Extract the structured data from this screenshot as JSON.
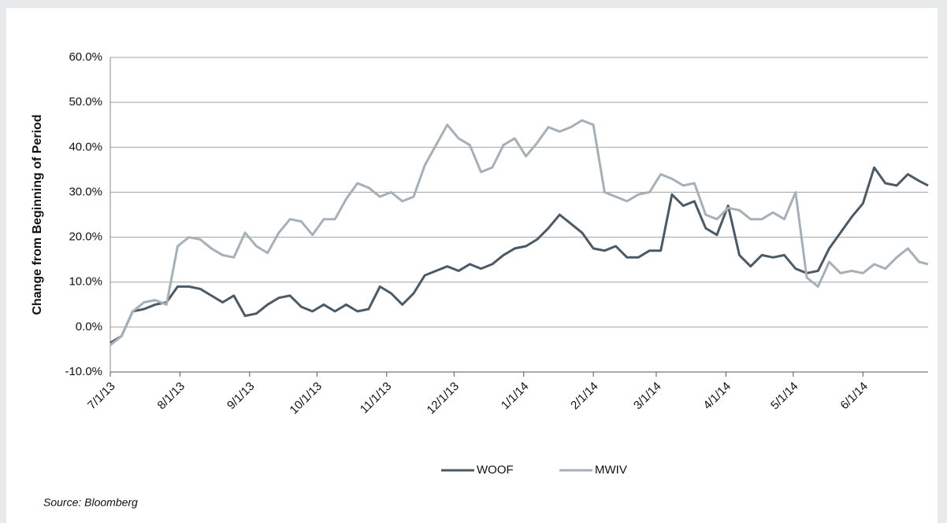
{
  "chart_data": {
    "type": "line",
    "y_label": "Change from Beginning of Period",
    "source": "Source: Bloomberg",
    "x": [
      "7/1/13",
      "7/6/13",
      "7/11/13",
      "7/16/13",
      "7/21/13",
      "7/26/13",
      "7/31/13",
      "8/5/13",
      "8/10/13",
      "8/15/13",
      "8/20/13",
      "8/25/13",
      "8/30/13",
      "9/4/13",
      "9/9/13",
      "9/14/13",
      "9/19/13",
      "9/24/13",
      "9/29/13",
      "10/4/13",
      "10/9/13",
      "10/14/13",
      "10/19/13",
      "10/24/13",
      "10/29/13",
      "11/3/13",
      "11/8/13",
      "11/13/13",
      "11/18/13",
      "11/23/13",
      "11/28/13",
      "12/3/13",
      "12/8/13",
      "12/13/13",
      "12/18/13",
      "12/23/13",
      "12/28/13",
      "1/2/14",
      "1/7/14",
      "1/12/14",
      "1/17/14",
      "1/22/14",
      "1/27/14",
      "2/1/14",
      "2/6/14",
      "2/11/14",
      "2/16/14",
      "2/21/14",
      "2/26/14",
      "3/3/14",
      "3/8/14",
      "3/13/14",
      "3/18/14",
      "3/23/14",
      "3/28/14",
      "4/2/14",
      "4/7/14",
      "4/12/14",
      "4/17/14",
      "4/22/14",
      "4/27/14",
      "5/2/14",
      "5/7/14",
      "5/12/14",
      "5/17/14",
      "5/22/14",
      "5/27/14",
      "6/1/14",
      "6/6/14",
      "6/11/14",
      "6/16/14",
      "6/21/14",
      "6/26/14",
      "6/30/14"
    ],
    "series": [
      {
        "name": "WOOF",
        "color": "#4a5a66",
        "values": [
          -3.5,
          -2,
          3.5,
          4,
          5,
          5.5,
          9,
          9,
          8.5,
          7,
          5.5,
          7,
          2.5,
          3,
          5,
          6.5,
          7,
          4.5,
          3.5,
          5,
          3.5,
          5,
          3.5,
          4,
          9,
          7.5,
          5,
          7.5,
          11.5,
          12.5,
          13.5,
          12.5,
          14,
          13,
          14,
          16,
          17.5,
          18,
          19.5,
          22,
          25,
          23,
          21,
          17.5,
          17,
          18,
          15.5,
          15.5,
          17,
          17,
          29.5,
          27,
          28,
          22,
          20.5,
          27,
          16,
          13.5,
          16,
          15.5,
          16,
          13,
          12,
          12.5,
          17.5,
          21,
          24.5,
          27.5,
          35.5,
          32,
          31.5,
          34,
          32.5,
          31.5
        ]
      },
      {
        "name": "MWIV",
        "color": "#a6b0b8",
        "values": [
          -4,
          -2,
          3.5,
          5.5,
          6,
          5,
          18,
          20,
          19.5,
          17.5,
          16,
          15.5,
          21,
          18,
          16.5,
          21,
          24,
          23.5,
          20.5,
          24,
          24,
          28.5,
          32,
          31,
          29,
          30,
          28,
          29,
          36,
          40.5,
          45,
          42,
          40.5,
          34.5,
          35.5,
          40.5,
          42,
          38,
          41,
          44.5,
          43.5,
          44.5,
          46,
          45,
          30,
          29,
          28,
          29.5,
          30,
          34,
          33,
          31.5,
          32,
          25,
          24,
          26.5,
          26,
          24,
          24,
          25.5,
          24,
          30,
          11,
          9,
          14.5,
          12,
          12.5,
          12,
          14,
          13,
          15.5,
          17.5,
          14.5,
          14
        ]
      }
    ],
    "xlim": [
      "7/1/13",
      "6/30/14"
    ],
    "xticks": [
      "7/1/13",
      "8/1/13",
      "9/1/13",
      "10/1/13",
      "11/1/13",
      "12/1/13",
      "1/1/14",
      "2/1/14",
      "3/1/14",
      "4/1/14",
      "5/1/14",
      "6/1/14"
    ],
    "ylim": [
      -10,
      60
    ],
    "yticks": [
      {
        "value": -10,
        "label": "-10.0%"
      },
      {
        "value": 0,
        "label": "0.0%"
      },
      {
        "value": 10,
        "label": "10.0%"
      },
      {
        "value": 20,
        "label": "20.0%"
      },
      {
        "value": 30,
        "label": "30.0%"
      },
      {
        "value": 40,
        "label": "40.0%"
      },
      {
        "value": 50,
        "label": "50.0%"
      },
      {
        "value": 60,
        "label": "60.0%"
      }
    ],
    "grid": true,
    "legend": "bottom"
  }
}
